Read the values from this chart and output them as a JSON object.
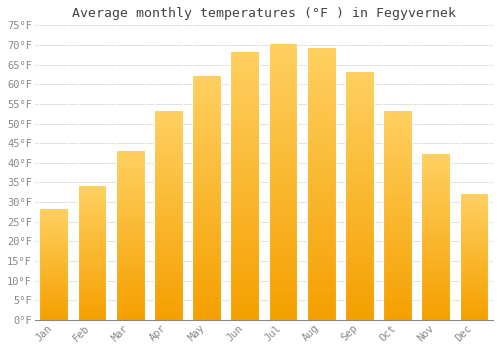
{
  "title": "Average monthly temperatures (°F ) in Fegyvernek",
  "months": [
    "Jan",
    "Feb",
    "Mar",
    "Apr",
    "May",
    "Jun",
    "Jul",
    "Aug",
    "Sep",
    "Oct",
    "Nov",
    "Dec"
  ],
  "values": [
    28,
    34,
    43,
    53,
    62,
    68,
    70,
    69,
    63,
    53,
    42,
    32
  ],
  "bar_color": "#FFA500",
  "bar_color_top": "#FFD060",
  "bar_edge_color": "#FFFFFF",
  "background_color": "#FFFFFF",
  "grid_color": "#DDDDDD",
  "ylim": [
    0,
    75
  ],
  "yticks": [
    0,
    5,
    10,
    15,
    20,
    25,
    30,
    35,
    40,
    45,
    50,
    55,
    60,
    65,
    70,
    75
  ],
  "title_fontsize": 9.5,
  "tick_fontsize": 7.5,
  "tick_font_color": "#888888"
}
